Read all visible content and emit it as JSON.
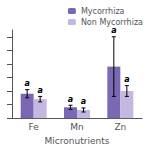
{
  "chart_data": {
    "type": "bar",
    "xlabel": "Micronutrients",
    "categories": [
      "Fe",
      "Mn",
      "Zn"
    ],
    "series": [
      {
        "name": "Mycorrhiza",
        "color": "#7B68B5",
        "values": [
          18,
          8,
          38
        ],
        "errors": [
          3,
          1.5,
          22
        ],
        "annotations": [
          "a",
          "a",
          "a"
        ]
      },
      {
        "name": "Non Mycorrhiza",
        "color": "#C4B8E0",
        "values": [
          14,
          6,
          20
        ],
        "errors": [
          2,
          1.5,
          4
        ],
        "annotations": [
          "a",
          "a",
          "a"
        ]
      }
    ],
    "ylim": [
      0,
      65
    ],
    "yticks": [
      0,
      10,
      20,
      30,
      40,
      50,
      60
    ],
    "tick_labels": "x",
    "grid": false,
    "legend": "upper right"
  }
}
